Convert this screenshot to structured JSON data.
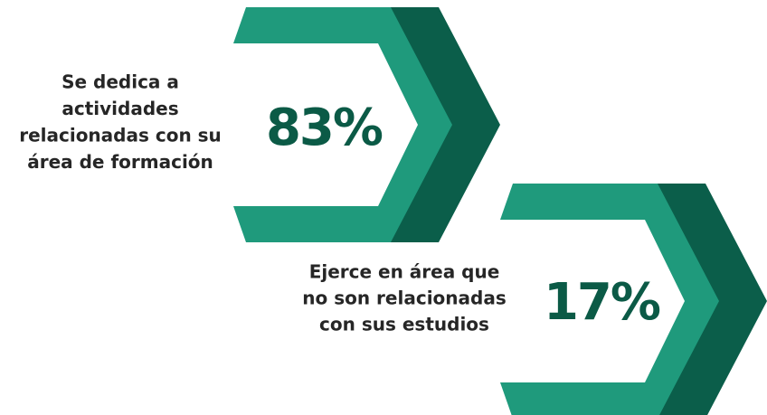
{
  "items": [
    {
      "label_lines": [
        "Se dedica a",
        "actividades",
        "relacionadas con su",
        "área de formación"
      ],
      "value": "83%"
    },
    {
      "label_lines": [
        "Ejerce en área que",
        "no son relacionadas",
        "con sus estudios"
      ],
      "value": "17%"
    }
  ]
}
